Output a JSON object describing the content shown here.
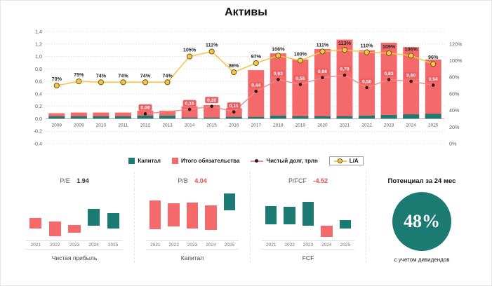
{
  "title": "Активы",
  "colors": {
    "teal": "#1B7A71",
    "red": "#F4696A",
    "yellow": "#F5C64A"
  },
  "chart_data": [
    {
      "type": "composed-bar-line",
      "title": "Активы",
      "categories": [
        "2008",
        "2009",
        "2010",
        "2011",
        "2012",
        "2013",
        "2014",
        "2015",
        "2016",
        "2017",
        "2018",
        "2019",
        "2020",
        "2021",
        "2022",
        "2023",
        "2024",
        "2025"
      ],
      "left_axis": {
        "min": -0.4,
        "max": 1.4,
        "step": 0.2
      },
      "right_axis": {
        "min": 0,
        "max": 120,
        "step": 20,
        "unit": "%",
        "top_align_left_value": 1.2
      },
      "grid": "dotted horizontal",
      "legend_position": "bottom",
      "series": [
        {
          "name": "Капитал",
          "type": "bar",
          "axis": "left",
          "color": "#1B7A71",
          "values": [
            0.04,
            0.04,
            0.04,
            0.04,
            0.05,
            0.05,
            0.02,
            0.02,
            0.03,
            0.03,
            0.05,
            0.04,
            0.04,
            0.04,
            0.05,
            0.06,
            0.07,
            0.08
          ]
        },
        {
          "name": "Итого обязательства",
          "type": "bar",
          "axis": "left",
          "color": "#F4696A",
          "values": [
            0.09,
            0.1,
            0.1,
            0.1,
            0.13,
            0.13,
            0.2,
            0.22,
            0.17,
            0.78,
            1.05,
            0.95,
            1.12,
            1.27,
            1.1,
            1.22,
            1.15,
            0.95
          ]
        },
        {
          "name": "Чистый долг, трлн",
          "type": "line",
          "axis": "left",
          "line_color": "#F08A8C",
          "dot_color": "#381414",
          "label_bg": "#EE5F62",
          "values": [
            null,
            null,
            null,
            null,
            0.08,
            null,
            0.15,
            0.2,
            0.11,
            0.44,
            0.63,
            0.55,
            0.66,
            0.7,
            0.5,
            0.63,
            0.6,
            0.54
          ]
        },
        {
          "name": "L/A",
          "type": "line",
          "axis": "right",
          "color": "#F5C64A",
          "marker_stroke": "#6F5813",
          "values": [
            70,
            75,
            74,
            74,
            74,
            74,
            105,
            111,
            86,
            97,
            106,
            100,
            111,
            113,
            110,
            109,
            106,
            96
          ]
        }
      ]
    },
    {
      "type": "waterfall",
      "name": "Чистая прибыль",
      "categories": [
        "2021",
        "2022",
        "2023",
        "2024",
        "2025"
      ],
      "units": "relative vertical positions (no axis labels in source, 0=top, 1=bottom)",
      "bars": [
        {
          "from": 0.55,
          "to": 0.78,
          "color": "red"
        },
        {
          "from": 0.62,
          "to": 0.95,
          "color": "red"
        },
        {
          "from": 0.7,
          "to": 0.88,
          "color": "red"
        },
        {
          "from": 0.35,
          "to": 0.72,
          "color": "teal"
        },
        {
          "from": 0.44,
          "to": 0.78,
          "color": "teal"
        }
      ]
    },
    {
      "type": "waterfall",
      "name": "Капитал",
      "categories": [
        "2021",
        "2022",
        "2023",
        "2024",
        "2025"
      ],
      "units": "relative vertical positions (no axis labels in source, 0=top, 1=bottom)",
      "bars": [
        {
          "from": 0.16,
          "to": 0.8,
          "color": "red"
        },
        {
          "from": 0.22,
          "to": 0.74,
          "color": "red"
        },
        {
          "from": 0.2,
          "to": 0.78,
          "color": "red"
        },
        {
          "from": 0.26,
          "to": 0.82,
          "color": "red"
        },
        {
          "from": 0.0,
          "to": 0.37,
          "color": "teal"
        }
      ]
    },
    {
      "type": "waterfall",
      "name": "FCF",
      "categories": [
        "2021",
        "2022",
        "2023",
        "2024",
        "2025"
      ],
      "units": "relative vertical positions (no axis labels in source, 0=top, 1=bottom)",
      "bars": [
        {
          "from": 0.28,
          "to": 0.68,
          "color": "teal"
        },
        {
          "from": 0.3,
          "to": 0.68,
          "color": "teal"
        },
        {
          "from": 0.18,
          "to": 0.72,
          "color": "teal"
        },
        {
          "from": 0.72,
          "to": 0.97,
          "color": "red"
        },
        {
          "from": 0.6,
          "to": 0.78,
          "color": "teal"
        }
      ]
    }
  ],
  "legend": [
    {
      "id": "capital",
      "label": "Капитал",
      "marker": "square",
      "color": "#1B7A71"
    },
    {
      "id": "liabilities",
      "label": "Итого обязательства",
      "marker": "square",
      "color": "#F4696A"
    },
    {
      "id": "net-debt",
      "label": "Чистый долг, трлн",
      "marker": "dot-line",
      "line_color": "#F08A8C",
      "dot_fill": "#381414"
    },
    {
      "id": "la",
      "label": "L/A",
      "marker": "circle-line",
      "line_color": "#F5C64A",
      "dot_fill": "#F5C64A",
      "dot_stroke": "#6F5813",
      "boxed": true
    }
  ],
  "metrics": [
    {
      "label": "P/E",
      "value": "1.94",
      "value_color": "#333333"
    },
    {
      "label": "P/B",
      "value": "4.04",
      "value_color": "#E8494B"
    },
    {
      "label": "P/FCF",
      "value": "-4.52",
      "value_color": "#E8494B"
    }
  ],
  "potential": {
    "title": "Потенциал за 24 мес",
    "value": "48%",
    "subtitle": "с учетом дивидендов",
    "circle_color": "#1B7A71"
  }
}
